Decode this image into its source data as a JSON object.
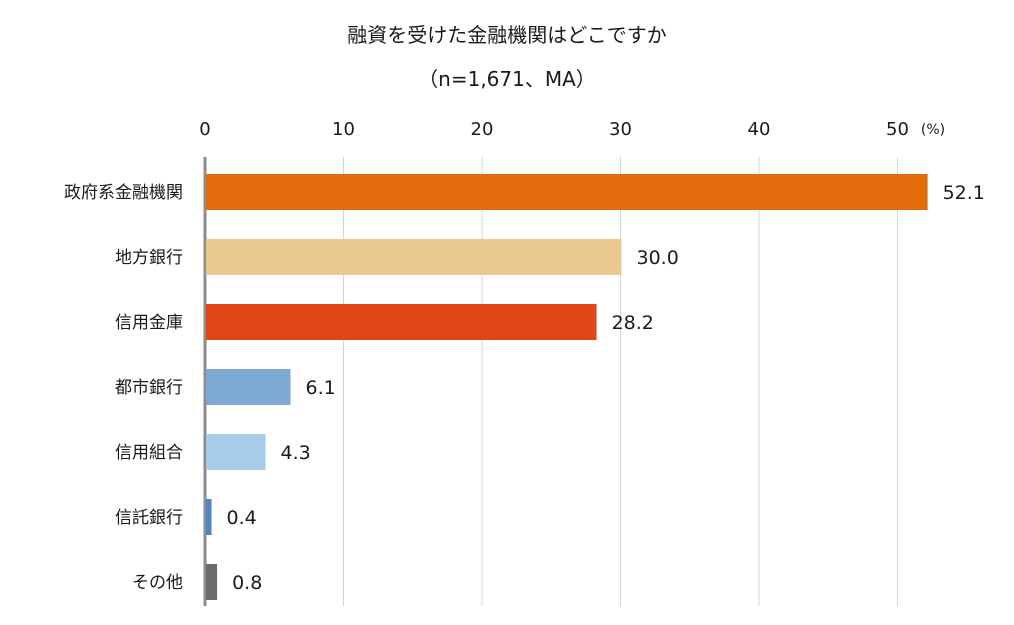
{
  "chart_data": {
    "type": "bar",
    "orientation": "horizontal",
    "title": "融資を受けた金融機関はどこですか",
    "subtitle": "（n=1,671、MA）",
    "unit_label": "(%)",
    "xlim": [
      0,
      55
    ],
    "ticks": [
      0,
      10,
      20,
      30,
      40,
      50
    ],
    "tick_labels": [
      "0",
      "10",
      "20",
      "30",
      "40",
      "50"
    ],
    "grid": true,
    "categories": [
      "政府系金融機関",
      "地方銀行",
      "信用金庫",
      "都市銀行",
      "信用組合",
      "信託銀行",
      "その他"
    ],
    "values": [
      52.1,
      30.0,
      28.2,
      6.1,
      4.3,
      0.4,
      0.8
    ],
    "value_labels": [
      "52.1",
      "30.0",
      "28.2",
      "6.1",
      "4.3",
      "0.4",
      "0.8"
    ],
    "colors": [
      "#e36c0a",
      "#e9c98f",
      "#e04616",
      "#7ea9d4",
      "#a8cce9",
      "#4f86c2",
      "#6b6b6b"
    ]
  }
}
